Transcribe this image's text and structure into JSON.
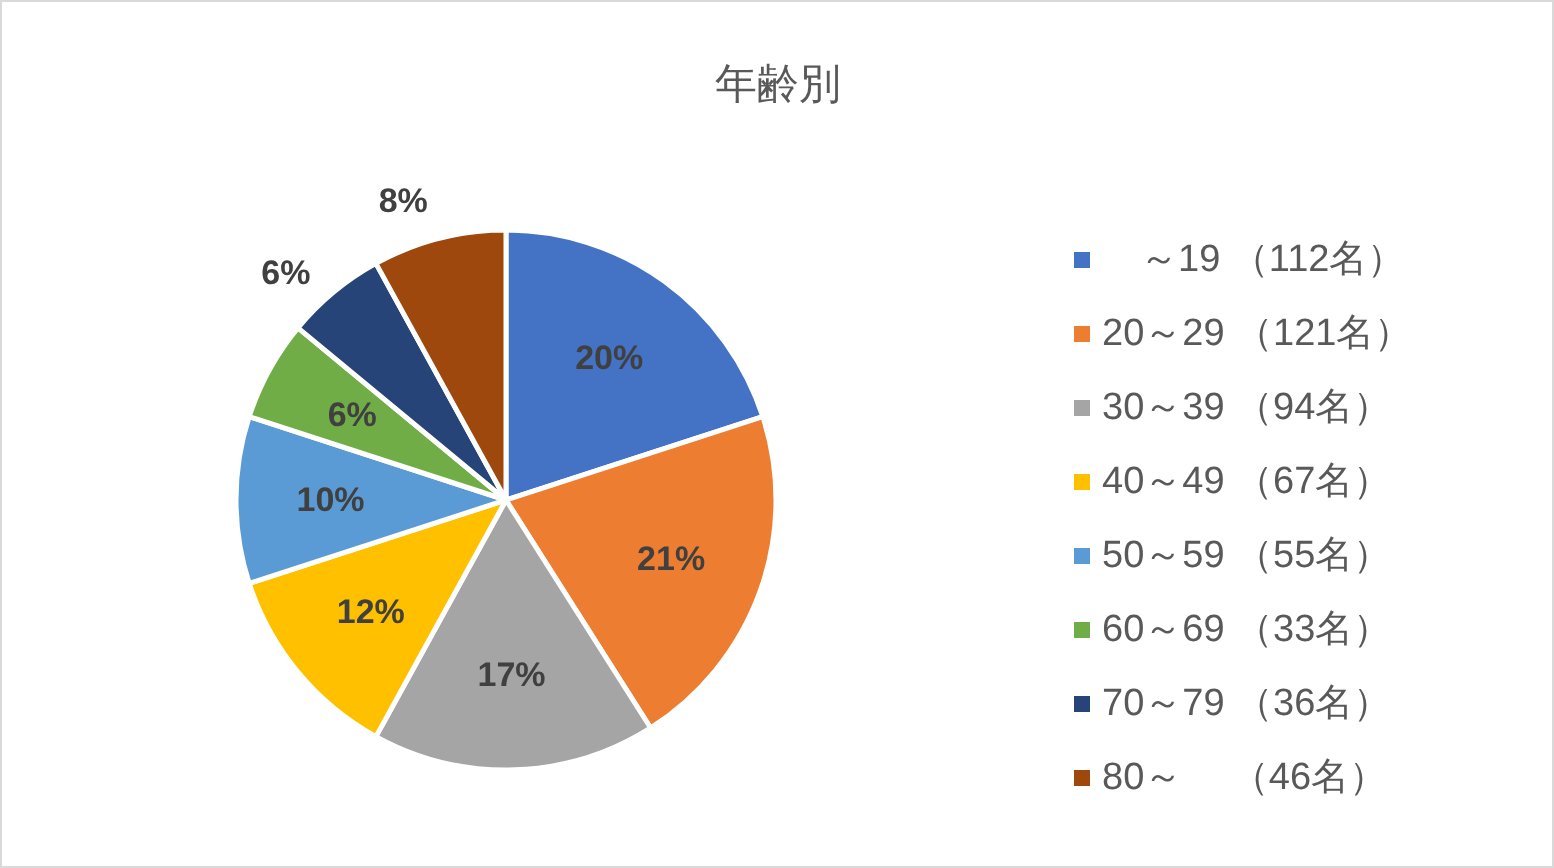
{
  "chart_data": {
    "type": "pie",
    "title": "年齢別",
    "categories": [
      "　～19 （112名）",
      "20～29 （121名）",
      "30～39 （94名）",
      "40～49 （67名）",
      "50～59 （55名）",
      "60～69 （33名）",
      "70～79 （36名）",
      "80～　 （46名）"
    ],
    "values": [
      20,
      21,
      17,
      12,
      10,
      6,
      6,
      8
    ],
    "colors": [
      "#4472c4",
      "#ed7d31",
      "#a5a5a5",
      "#ffc000",
      "#5b9bd5",
      "#70ad47",
      "#264478",
      "#9e480e"
    ],
    "value_labels": [
      "20%",
      "21%",
      "17%",
      "12%",
      "10%",
      "6%",
      "6%",
      "8%"
    ],
    "legend": "right"
  }
}
